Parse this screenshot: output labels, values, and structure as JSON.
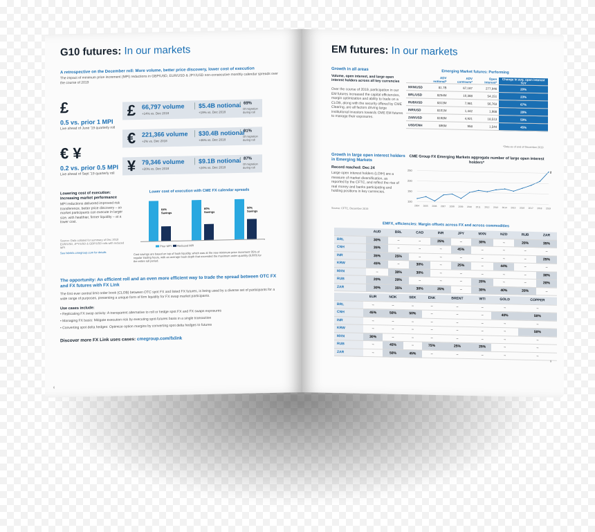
{
  "left": {
    "title_main": "G10 futures:",
    "title_accent": "In our markets",
    "subtitle": "A retrospective on the December roll: More volume, better price discovery, lower cost of execution",
    "intro": "The impact of minimum price increment (MPI) reductions in GBP/USD, EUR/USD & JPY/USD non-consecutive monthly calendar spreads over the course of 2019",
    "mpi1": {
      "value": "0.5 vs. prior 1 MPI",
      "sub": "Live ahead of June '19 quarterly roll"
    },
    "mpi2": {
      "value": "0.2 vs. prior 0.5 MPI",
      "sub": "Live ahead of Sept '19 quarterly roll"
    },
    "stats": [
      {
        "icon": "£",
        "volume": "66,797 volume",
        "vol_sub": "+14% vs. Dec 2018",
        "notional": "$5.4B notional",
        "not_sub": "+19% vs. Dec 2018",
        "pct": "69%",
        "pct_sub": "Of migration during roll"
      },
      {
        "icon": "€",
        "volume": "221,366 volume",
        "vol_sub": "+2% vs. Dec 2018",
        "notional": "$30.4B notional",
        "not_sub": "+46% vs. Dec 2018",
        "pct": "91%",
        "pct_sub": "Of migration during roll"
      },
      {
        "icon": "¥",
        "volume": "79,346 volume",
        "vol_sub": "+20% vs. Dec 2018",
        "notional": "$9.1B notional",
        "not_sub": "+24% vs. Dec 2018",
        "pct": "87%",
        "pct_sub": "Of migration during roll"
      }
    ],
    "lower_cost_head": "Lowering cost of execution: Increasing market performance",
    "lower_cost_body": "MPI reductions delivered improved risk transference, better price discovery – so market participants can execute in larger size, with healthier, firmer liquidity – at a lower cost.",
    "source_note": "Source: Data collated for summary of Dec 2019 EUR/USD, JPY/USD & GBP/USD rolls with reduced MPI",
    "link_note": "See fxlinkfx.cmegroup.com for details",
    "chart_caption": "Cost savings are based on top of book liquidity, which was at the new minimum price increment 95% of regular trading hours, with an average book depth that exceeded the maximum order quantity (8,000) for the entire roll period.",
    "opportunity_head": "The opportunity: An efficient roll and an even more efficient way to trade the spread between OTC FX and FX futures with FX Link",
    "opportunity_body": "The first ever central limit order book (CLOB) between OTC spot FX and listed FX futures, is being used by a diverse set of participants for a wide range of purposes, presenting a unique form of firm liquidity for FX swap market participants.",
    "use_cases_head": "Use cases include:",
    "use_cases": [
      "• Replicating FX swap activity: A transparent alternative to roll or hedge spot FX and FX swaps exposures",
      "• Managing FX basis: Mitigate execution risk by executing spot-futures basis in a single transaction",
      "• Converting spot delta hedges: Optimize option margins by converting spot delta hedges to futures"
    ],
    "discover": "Discover more FX Link uses cases:",
    "discover_link": "cmegroup.com/fxlink",
    "page_no": "6"
  },
  "chart_data": [
    {
      "type": "bar",
      "title": "Lower cost of execution with CME FX calendar spreads",
      "categories": [
        "GBP",
        "EUR",
        "JPY"
      ],
      "series": [
        {
          "name": "Prior MPI",
          "values": [
            100,
            100,
            100
          ],
          "color": "#29a8e0"
        },
        {
          "name": "Reduced MPI",
          "values": [
            36,
            40,
            50
          ],
          "color": "#17305a"
        }
      ],
      "annotations": [
        "64% Savings",
        "60% Savings",
        "50% Savings"
      ],
      "ylim": [
        0,
        100
      ]
    },
    {
      "type": "line",
      "title": "CME Group FX Emerging Markets aggregate number of large open interest holders*",
      "x": [
        "2004",
        "2005",
        "2006",
        "2007",
        "2008",
        "2009",
        "2010",
        "2011",
        "2012",
        "2013",
        "2014",
        "2015",
        "2016",
        "2017",
        "2018",
        "2019"
      ],
      "values": [
        115,
        125,
        105,
        135,
        140,
        120,
        150,
        160,
        155,
        165,
        170,
        160,
        175,
        190,
        210,
        256
      ],
      "yticks": [
        "250",
        "200",
        "150",
        "100"
      ],
      "ylim": [
        100,
        260
      ],
      "end_label": "256"
    }
  ],
  "right": {
    "title_main": "EM futures:",
    "title_accent": "In our markets",
    "growth_head": "Growth in all areas",
    "growth_sub": "Volume, open interest, and large open interest holders across all key currencies",
    "growth_body": "Over the course of 2019, participation in our EM futures increased the capital efficiencies, margin optimization and ability to trade on a CLOB, along with the security offered by CME Clearing, are all factors driving large institutional investors towards CME EM futures to manage their exposures.",
    "table_title": "Emerging Market futures: Performing",
    "table_headers": [
      "",
      "ADV notional*",
      "ADV contracts*",
      "Open interest*",
      "Change in avg. open interest YoY"
    ],
    "table_rows": [
      [
        "MXN/USD",
        "$1.7B",
        "67,187",
        "277,946",
        "20%"
      ],
      [
        "BRL/USD",
        "$254M",
        "10,388",
        "54,151",
        "23%"
      ],
      [
        "RUB/USD",
        "$313M",
        "7,981",
        "56,763",
        "67%"
      ],
      [
        "INR/USD",
        "$101M",
        "1,442",
        "1,988",
        "28%"
      ],
      [
        "ZAR/USD",
        "$168M",
        "4,921",
        "18,513",
        "59%"
      ],
      [
        "USD/CNH",
        "$96M",
        "958",
        "1,544",
        "45%"
      ]
    ],
    "table_note": "*Data as of end of December 2019",
    "large_oi_head": "Growth in large open interest holders in Emerging Markets",
    "record_head": "Record reached: Dec 24",
    "record_body": "Large open interest holders (LOIH) are a measure of market diversification, as reported by the CFTC, and reflect the rise of real money and banks participating and holding positions in key currencies.",
    "record_source": "Source: CFTC, December 2019",
    "margin_title": "EMFX, efficiencies: Margin offsets across FX and across commodities",
    "margin_cols1": [
      "",
      "AUD",
      "BRL",
      "CAD",
      "INR",
      "JPY",
      "MXN",
      "NZD",
      "RUB",
      "ZAR"
    ],
    "margin_rows1": [
      [
        "BRL",
        "30%",
        "–",
        "–",
        "25%",
        "–",
        "30%",
        "–",
        "20%",
        "35%"
      ],
      [
        "CNH",
        "35%",
        "–",
        "–",
        "–",
        "45%",
        "–",
        "–",
        "–",
        "–"
      ],
      [
        "INR",
        "35%",
        "25%",
        "–",
        "–",
        "–",
        "–",
        "–",
        "–",
        "25%"
      ],
      [
        "KRW",
        "45%",
        "–",
        "30%",
        "–",
        "25%",
        "–",
        "44%",
        "–",
        "–"
      ],
      [
        "MXN",
        "–",
        "30%",
        "30%",
        "–",
        "–",
        "–",
        "–",
        "–",
        "30%"
      ],
      [
        "RUB",
        "20%",
        "20%",
        "–",
        "–",
        "–",
        "20%",
        "–",
        "–",
        "20%"
      ],
      [
        "ZAR",
        "30%",
        "35%",
        "30%",
        "25%",
        "–",
        "30%",
        "40%",
        "20%",
        "–"
      ]
    ],
    "margin_cols2": [
      "",
      "EUR",
      "NOK",
      "SEK",
      "ENK",
      "BRENT",
      "WTI",
      "GOLD",
      "COPPER"
    ],
    "margin_rows2": [
      [
        "BRL",
        "–",
        "–",
        "–",
        "–",
        "–",
        "–",
        "–",
        "–"
      ],
      [
        "CNH",
        "45%",
        "50%",
        "50%",
        "–",
        "–",
        "–",
        "40%",
        "50%"
      ],
      [
        "INR",
        "–",
        "–",
        "–",
        "–",
        "–",
        "–",
        "–",
        "–"
      ],
      [
        "KRW",
        "–",
        "–",
        "–",
        "–",
        "–",
        "–",
        "–",
        "50%"
      ],
      [
        "MXN",
        "30%",
        "–",
        "–",
        "–",
        "–",
        "–",
        "–",
        "–"
      ],
      [
        "RUB",
        "–",
        "45%",
        "–",
        "75%",
        "25%",
        "25%",
        "–",
        "–"
      ],
      [
        "ZAR",
        "–",
        "50%",
        "45%",
        "–",
        "–",
        "–",
        "–",
        "–"
      ]
    ],
    "page_no": "9"
  }
}
